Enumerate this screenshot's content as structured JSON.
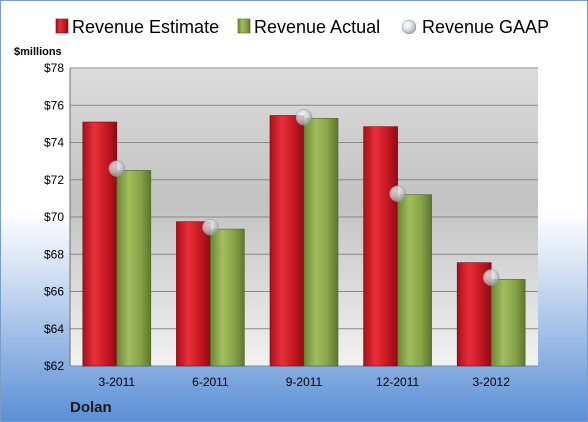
{
  "chart_data": {
    "type": "bar",
    "title": "",
    "xlabel": "",
    "ylabel": "$millions",
    "unit_label": "$millions",
    "company": "Dolan",
    "categories": [
      "3-2011",
      "6-2011",
      "9-2011",
      "12-2011",
      "3-2012"
    ],
    "ylim": [
      62,
      78
    ],
    "yticks": [
      62,
      64,
      66,
      68,
      70,
      72,
      74,
      76,
      78
    ],
    "ytick_labels": [
      "$62",
      "$64",
      "$66",
      "$68",
      "$70",
      "$72",
      "$74",
      "$76",
      "$78"
    ],
    "grid": true,
    "legend_position": "top",
    "series": [
      {
        "name": "Revenue Estimate",
        "mark": "bar",
        "color": "#e0202c",
        "values": [
          75.1,
          69.75,
          75.45,
          74.85,
          67.55
        ]
      },
      {
        "name": "Revenue Actual",
        "mark": "bar",
        "color": "#8ca84a",
        "values": [
          72.5,
          69.35,
          75.3,
          71.2,
          66.65
        ]
      },
      {
        "name": "Revenue GAAP",
        "mark": "point",
        "color": "#c8cdd6",
        "values": [
          72.6,
          69.45,
          75.35,
          71.25,
          66.75
        ]
      }
    ]
  }
}
